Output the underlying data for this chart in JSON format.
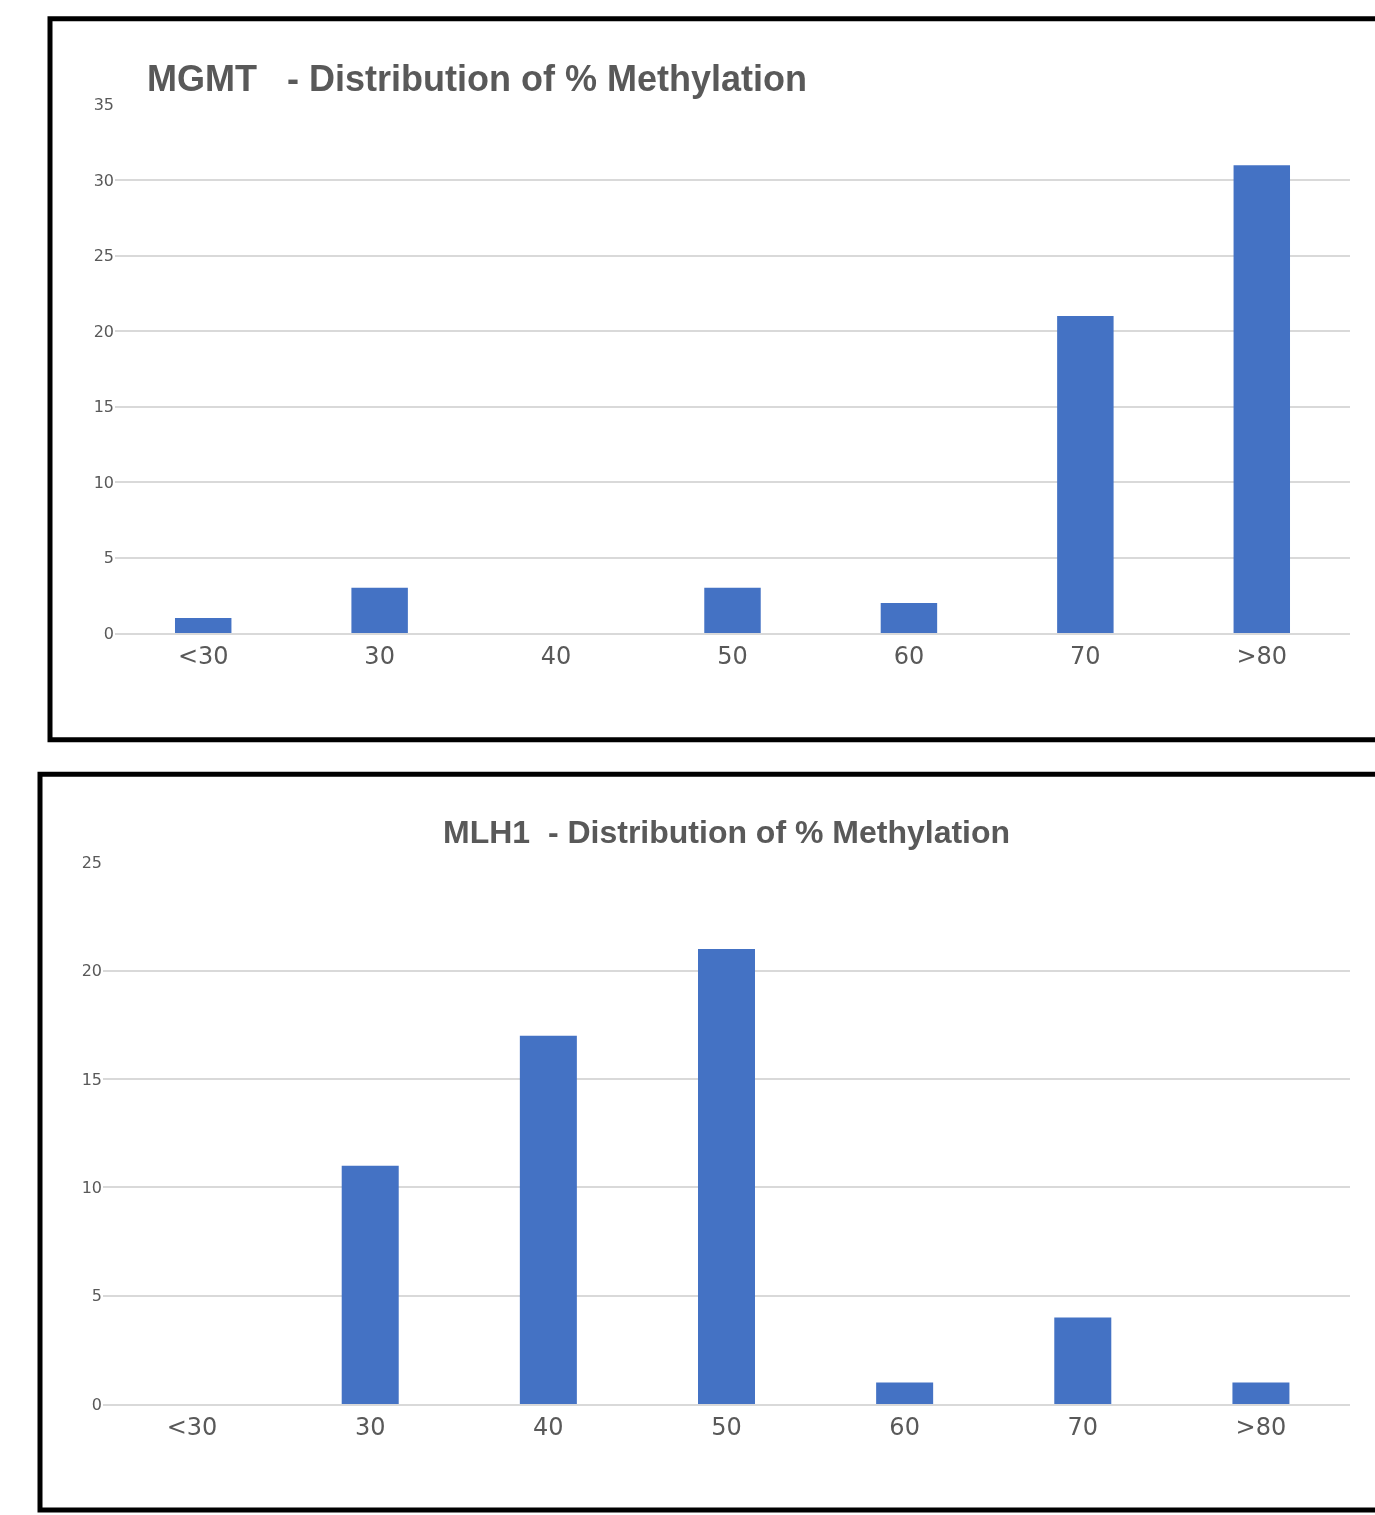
{
  "chart_data": [
    {
      "type": "bar",
      "title": "MGMT   - Distribution of % Methylation",
      "categories": [
        "<30",
        "30",
        "40",
        "50",
        "60",
        "70",
        ">80"
      ],
      "values": [
        1,
        3,
        0,
        3,
        2,
        21,
        31
      ],
      "color": "#4472c4",
      "ylim": [
        0,
        35
      ],
      "yticks": [
        0,
        5,
        10,
        15,
        20,
        25,
        30,
        35
      ],
      "grid": "y"
    },
    {
      "type": "bar",
      "title": "MLH1  - Distribution of % Methylation",
      "categories": [
        "<30",
        "30",
        "40",
        "50",
        "60",
        "70",
        ">80"
      ],
      "values": [
        0,
        11,
        17,
        21,
        1,
        4,
        1
      ],
      "color": "#4472c4",
      "ylim": [
        0,
        25
      ],
      "yticks": [
        0,
        5,
        10,
        15,
        20,
        25
      ],
      "grid": "y"
    }
  ]
}
